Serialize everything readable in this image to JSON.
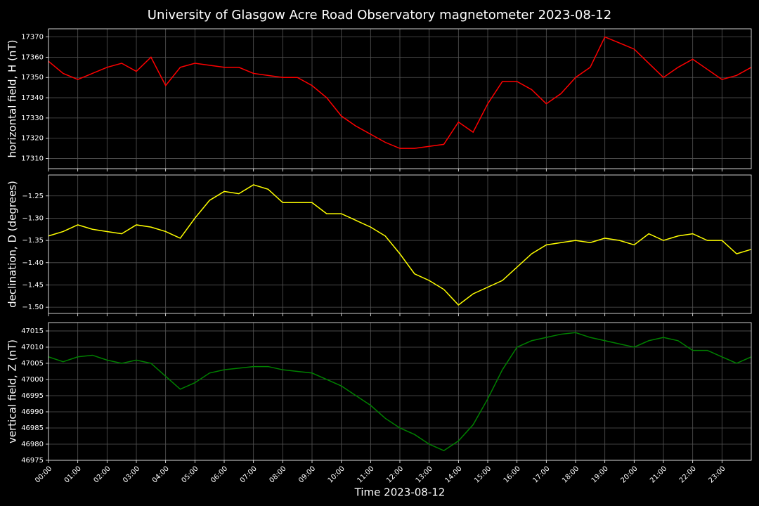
{
  "title": "University of Glasgow Acre Road Observatory magnetometer 2023-08-12",
  "chart_data": [
    {
      "type": "line",
      "ylabel": "horizontal field, H (nT)",
      "x": [
        0,
        0.5,
        1,
        1.5,
        2,
        2.5,
        3,
        3.5,
        4,
        4.5,
        5,
        5.5,
        6,
        6.5,
        7,
        7.5,
        8,
        8.5,
        9,
        9.5,
        10,
        10.5,
        11,
        11.5,
        12,
        12.5,
        13,
        13.5,
        14,
        14.5,
        15,
        15.5,
        16,
        16.5,
        17,
        17.5,
        18,
        18.5,
        19,
        19.5,
        20,
        20.5,
        21,
        21.5,
        22,
        22.5,
        23,
        23.5,
        24
      ],
      "series": [
        {
          "color": "#ff0000",
          "values": [
            17358,
            17352,
            17349,
            17352,
            17355,
            17357,
            17353,
            17360,
            17346,
            17355,
            17357,
            17356,
            17355,
            17355,
            17352,
            17351,
            17350,
            17350,
            17346,
            17340,
            17331,
            17326,
            17322,
            17318,
            17315,
            17315,
            17316,
            17317,
            17328,
            17323,
            17337,
            17348,
            17348,
            17344,
            17337,
            17342,
            17350,
            17355,
            17370,
            17367,
            17364,
            17357,
            17350,
            17355,
            17359,
            17354,
            17349,
            17351,
            17355
          ]
        }
      ],
      "xlim": [
        0,
        24
      ],
      "xticks": [
        {
          "value": 0,
          "label": "00:00"
        },
        {
          "value": 1,
          "label": "01:00"
        },
        {
          "value": 2,
          "label": "02:00"
        },
        {
          "value": 3,
          "label": "03:00"
        },
        {
          "value": 4,
          "label": "04:00"
        },
        {
          "value": 5,
          "label": "05:00"
        },
        {
          "value": 6,
          "label": "06:00"
        },
        {
          "value": 7,
          "label": "07:00"
        },
        {
          "value": 8,
          "label": "08:00"
        },
        {
          "value": 9,
          "label": "09:00"
        },
        {
          "value": 10,
          "label": "10:00"
        },
        {
          "value": 11,
          "label": "11:00"
        },
        {
          "value": 12,
          "label": "12:00"
        },
        {
          "value": 13,
          "label": "13:00"
        },
        {
          "value": 14,
          "label": "14:00"
        },
        {
          "value": 15,
          "label": "15:00"
        },
        {
          "value": 16,
          "label": "16:00"
        },
        {
          "value": 17,
          "label": "17:00"
        },
        {
          "value": 18,
          "label": "18:00"
        },
        {
          "value": 19,
          "label": "19:00"
        },
        {
          "value": 20,
          "label": "20:00"
        },
        {
          "value": 21,
          "label": "21:00"
        },
        {
          "value": 22,
          "label": "22:00"
        },
        {
          "value": 23,
          "label": "23:00"
        }
      ],
      "ylim": [
        17305,
        17374
      ],
      "yticks": [
        17310,
        17320,
        17330,
        17340,
        17350,
        17360,
        17370
      ],
      "grid": true
    },
    {
      "type": "line",
      "ylabel": "declination, D (degrees)",
      "x": [
        0,
        0.5,
        1,
        1.5,
        2,
        2.5,
        3,
        3.5,
        4,
        4.5,
        5,
        5.5,
        6,
        6.5,
        7,
        7.5,
        8,
        8.5,
        9,
        9.5,
        10,
        10.5,
        11,
        11.5,
        12,
        12.5,
        13,
        13.5,
        14,
        14.5,
        15,
        15.5,
        16,
        16.5,
        17,
        17.5,
        18,
        18.5,
        19,
        19.5,
        20,
        20.5,
        21,
        21.5,
        22,
        22.5,
        23,
        23.5,
        24
      ],
      "series": [
        {
          "color": "#ffff00",
          "values": [
            -1.34,
            -1.33,
            -1.315,
            -1.325,
            -1.33,
            -1.335,
            -1.315,
            -1.32,
            -1.33,
            -1.345,
            -1.3,
            -1.26,
            -1.24,
            -1.245,
            -1.225,
            -1.235,
            -1.265,
            -1.265,
            -1.265,
            -1.29,
            -1.29,
            -1.305,
            -1.32,
            -1.34,
            -1.38,
            -1.425,
            -1.44,
            -1.46,
            -1.495,
            -1.47,
            -1.455,
            -1.44,
            -1.41,
            -1.38,
            -1.36,
            -1.355,
            -1.35,
            -1.355,
            -1.345,
            -1.35,
            -1.36,
            -1.335,
            -1.35,
            -1.34,
            -1.335,
            -1.35,
            -1.35,
            -1.38,
            -1.37
          ]
        }
      ],
      "xlim": [
        0,
        24
      ],
      "xticks": [
        {
          "value": 0,
          "label": "00:00"
        },
        {
          "value": 1,
          "label": "01:00"
        },
        {
          "value": 2,
          "label": "02:00"
        },
        {
          "value": 3,
          "label": "03:00"
        },
        {
          "value": 4,
          "label": "04:00"
        },
        {
          "value": 5,
          "label": "05:00"
        },
        {
          "value": 6,
          "label": "06:00"
        },
        {
          "value": 7,
          "label": "07:00"
        },
        {
          "value": 8,
          "label": "08:00"
        },
        {
          "value": 9,
          "label": "09:00"
        },
        {
          "value": 10,
          "label": "10:00"
        },
        {
          "value": 11,
          "label": "11:00"
        },
        {
          "value": 12,
          "label": "12:00"
        },
        {
          "value": 13,
          "label": "13:00"
        },
        {
          "value": 14,
          "label": "14:00"
        },
        {
          "value": 15,
          "label": "15:00"
        },
        {
          "value": 16,
          "label": "16:00"
        },
        {
          "value": 17,
          "label": "17:00"
        },
        {
          "value": 18,
          "label": "18:00"
        },
        {
          "value": 19,
          "label": "19:00"
        },
        {
          "value": 20,
          "label": "20:00"
        },
        {
          "value": 21,
          "label": "21:00"
        },
        {
          "value": 22,
          "label": "22:00"
        },
        {
          "value": 23,
          "label": "23:00"
        }
      ],
      "ylim": [
        -1.514,
        -1.203
      ],
      "yticks": [
        {
          "value": -1.25,
          "label": "−1.25"
        },
        {
          "value": -1.3,
          "label": "−1.30"
        },
        {
          "value": -1.35,
          "label": "−1.35"
        },
        {
          "value": -1.4,
          "label": "−1.40"
        },
        {
          "value": -1.45,
          "label": "−1.45"
        },
        {
          "value": -1.5,
          "label": "−1.50"
        }
      ],
      "grid": true
    },
    {
      "type": "line",
      "ylabel": "vertical field, Z (nT)",
      "xlabel": "Time 2023-08-12",
      "x": [
        0,
        0.5,
        1,
        1.5,
        2,
        2.5,
        3,
        3.5,
        4,
        4.5,
        5,
        5.5,
        6,
        6.5,
        7,
        7.5,
        8,
        8.5,
        9,
        9.5,
        10,
        10.5,
        11,
        11.5,
        12,
        12.5,
        13,
        13.5,
        14,
        14.5,
        15,
        15.5,
        16,
        16.5,
        17,
        17.5,
        18,
        18.5,
        19,
        19.5,
        20,
        20.5,
        21,
        21.5,
        22,
        22.5,
        23,
        23.5,
        24
      ],
      "series": [
        {
          "color": "#008000",
          "values": [
            47007,
            47005.5,
            47007,
            47007.5,
            47006,
            47005,
            47006,
            47005,
            47001,
            46997,
            46999,
            47002,
            47003,
            47003.5,
            47004,
            47004,
            47003,
            47002.5,
            47002,
            47000,
            46998,
            46995,
            46992,
            46988,
            46985,
            46983,
            46980,
            46978,
            46981,
            46986,
            46994,
            47003,
            47010,
            47012,
            47013,
            47014,
            47014.5,
            47013,
            47012,
            47011,
            47010,
            47012,
            47013,
            47012,
            47009,
            47009,
            47007,
            47005,
            47007
          ]
        }
      ],
      "xlim": [
        0,
        24
      ],
      "xticks": [
        {
          "value": 0,
          "label": "00:00"
        },
        {
          "value": 1,
          "label": "01:00"
        },
        {
          "value": 2,
          "label": "02:00"
        },
        {
          "value": 3,
          "label": "03:00"
        },
        {
          "value": 4,
          "label": "04:00"
        },
        {
          "value": 5,
          "label": "05:00"
        },
        {
          "value": 6,
          "label": "06:00"
        },
        {
          "value": 7,
          "label": "07:00"
        },
        {
          "value": 8,
          "label": "08:00"
        },
        {
          "value": 9,
          "label": "09:00"
        },
        {
          "value": 10,
          "label": "10:00"
        },
        {
          "value": 11,
          "label": "11:00"
        },
        {
          "value": 12,
          "label": "12:00"
        },
        {
          "value": 13,
          "label": "13:00"
        },
        {
          "value": 14,
          "label": "14:00"
        },
        {
          "value": 15,
          "label": "15:00"
        },
        {
          "value": 16,
          "label": "16:00"
        },
        {
          "value": 17,
          "label": "17:00"
        },
        {
          "value": 18,
          "label": "18:00"
        },
        {
          "value": 19,
          "label": "19:00"
        },
        {
          "value": 20,
          "label": "20:00"
        },
        {
          "value": 21,
          "label": "21:00"
        },
        {
          "value": 22,
          "label": "22:00"
        },
        {
          "value": 23,
          "label": "23:00"
        }
      ],
      "ylim": [
        46975,
        47017.6
      ],
      "yticks": [
        46975,
        46980,
        46985,
        46990,
        46995,
        47000,
        47005,
        47010,
        47015
      ],
      "grid": true
    }
  ]
}
